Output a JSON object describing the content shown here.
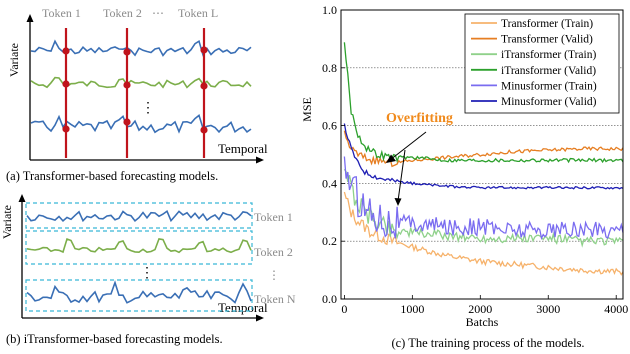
{
  "panel_a": {
    "token_labels": [
      "Token 1",
      "Token 2",
      "Token L"
    ],
    "dots": "⋯",
    "vdots": "⋮",
    "ylabel": "Variate",
    "xlabel": "Temporal",
    "caption": "(a) Transformer-based forecasting models.",
    "colors": {
      "series_blue": "#3a6fb5",
      "series_green": "#7cae4a",
      "token_line": "#c0141c",
      "token_text": "#8c8c8c"
    }
  },
  "panel_b": {
    "token_labels": [
      "Token 1",
      "Token 2",
      "Token N"
    ],
    "vdots": "⋮",
    "ylabel": "Variate",
    "xlabel": "Temporal",
    "caption": "(b) iTransformer-based forecasting models.",
    "colors": {
      "box": "#39b7d6"
    }
  },
  "panel_c": {
    "caption": "(c) The training process of the models.",
    "annotation": "Overfitting",
    "annotation_color": "#f08a1c"
  },
  "chart_data": {
    "type": "line",
    "xlabel": "Batchs",
    "ylabel": "MSE",
    "xlim": [
      -50,
      4100
    ],
    "ylim": [
      0.0,
      1.0
    ],
    "xticks": [
      0,
      1000,
      2000,
      3000,
      4000
    ],
    "yticks": [
      0.0,
      0.2,
      0.4,
      0.6,
      0.8,
      1.0
    ],
    "grid": "dotted horizontal at 0.2, 0.4, 0.6, 0.8",
    "legend_position": "top-right",
    "series": [
      {
        "name": "Transformer (Train)",
        "color": "#f6b26b",
        "x": [
          0,
          100,
          200,
          300,
          400,
          500,
          700,
          1000,
          1500,
          2000,
          2500,
          3000,
          3500,
          4000,
          4100
        ],
        "y": [
          0.36,
          0.3,
          0.27,
          0.25,
          0.23,
          0.22,
          0.2,
          0.18,
          0.15,
          0.13,
          0.12,
          0.11,
          0.1,
          0.095,
          0.09
        ]
      },
      {
        "name": "Transformer (Valid)",
        "color": "#e67e22",
        "x": [
          0,
          100,
          200,
          300,
          400,
          500,
          700,
          1000,
          1500,
          2000,
          2500,
          3000,
          3500,
          4000,
          4100
        ],
        "y": [
          0.57,
          0.52,
          0.5,
          0.49,
          0.48,
          0.48,
          0.47,
          0.48,
          0.49,
          0.5,
          0.51,
          0.515,
          0.52,
          0.52,
          0.52
        ]
      },
      {
        "name": "iTransformer (Train)",
        "color": "#8fd18a",
        "x": [
          0,
          100,
          200,
          300,
          400,
          500,
          700,
          1000,
          1500,
          2000,
          2500,
          3000,
          3500,
          4000,
          4100
        ],
        "y": [
          0.47,
          0.38,
          0.33,
          0.3,
          0.28,
          0.27,
          0.24,
          0.23,
          0.22,
          0.21,
          0.21,
          0.21,
          0.2,
          0.2,
          0.19
        ]
      },
      {
        "name": "iTransformer (Valid)",
        "color": "#2ca02c",
        "x": [
          0,
          100,
          200,
          300,
          400,
          500,
          700,
          1000,
          1500,
          2000,
          2500,
          3000,
          3500,
          4000,
          4100
        ],
        "y": [
          0.89,
          0.65,
          0.57,
          0.53,
          0.51,
          0.5,
          0.49,
          0.49,
          0.48,
          0.48,
          0.48,
          0.48,
          0.48,
          0.48,
          0.48
        ]
      },
      {
        "name": "Minusformer (Train)",
        "color": "#7a6cf0",
        "x": [
          0,
          100,
          200,
          300,
          400,
          500,
          700,
          1000,
          1500,
          2000,
          2500,
          3000,
          3500,
          4000,
          4100
        ],
        "y": [
          0.47,
          0.4,
          0.35,
          0.32,
          0.3,
          0.29,
          0.27,
          0.26,
          0.25,
          0.25,
          0.24,
          0.24,
          0.24,
          0.24,
          0.25
        ]
      },
      {
        "name": "Minusformer (Valid)",
        "color": "#1f1fb4",
        "x": [
          0,
          100,
          200,
          300,
          400,
          500,
          700,
          1000,
          1500,
          2000,
          2500,
          3000,
          3500,
          4000,
          4100
        ],
        "y": [
          0.6,
          0.52,
          0.47,
          0.44,
          0.43,
          0.42,
          0.41,
          0.4,
          0.39,
          0.385,
          0.385,
          0.385,
          0.385,
          0.385,
          0.385
        ]
      }
    ]
  }
}
